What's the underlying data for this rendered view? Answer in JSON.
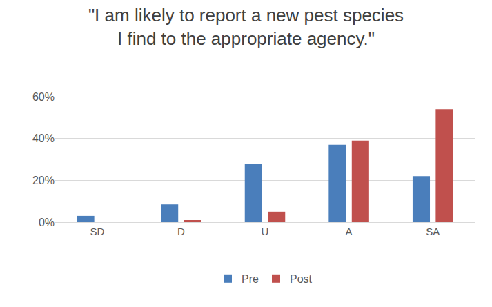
{
  "chart_data": {
    "type": "bar",
    "title": "\"I am likely to report a new pest species\nI find to the appropriate agency.\"",
    "categories": [
      "SD",
      "D",
      "U",
      "A",
      "SA"
    ],
    "series": [
      {
        "name": "Pre",
        "color": "#4a7ebb",
        "values": [
          3,
          8.5,
          28,
          37,
          22
        ]
      },
      {
        "name": "Post",
        "color": "#c0504d",
        "values": [
          0,
          1,
          5,
          39,
          54
        ]
      }
    ],
    "ylim": [
      0,
      60
    ],
    "yticks": [
      {
        "value": 0,
        "label": "0%"
      },
      {
        "value": 20,
        "label": "20%"
      },
      {
        "value": 40,
        "label": "40%"
      },
      {
        "value": 60,
        "label": "60%"
      }
    ],
    "grid": true,
    "legend": "bottom"
  }
}
